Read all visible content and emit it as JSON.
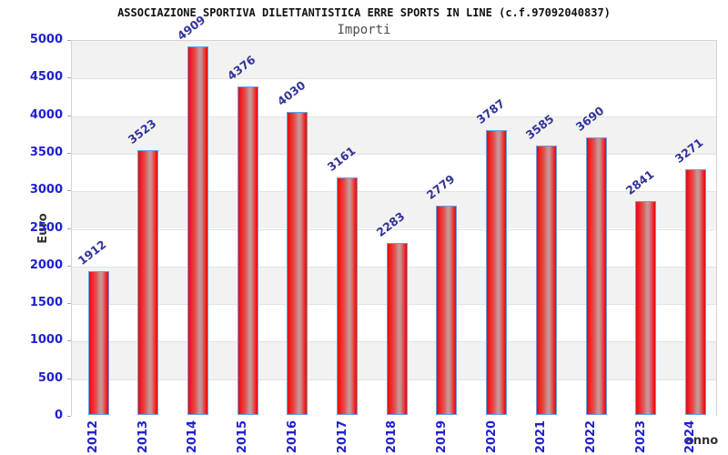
{
  "header": {
    "title": "ASSOCIAZIONE SPORTIVA DILETTANTISTICA ERRE SPORTS IN LINE (c.f.97092040837)",
    "subtitle": "Importi"
  },
  "chart_data": {
    "type": "bar",
    "title": "Importi",
    "categories": [
      "2012",
      "2013",
      "2014",
      "2015",
      "2016",
      "2017",
      "2018",
      "2019",
      "2020",
      "2021",
      "2022",
      "2023",
      "2024"
    ],
    "values": [
      1912,
      3523,
      4909,
      4376,
      4030,
      3161,
      2283,
      2779,
      3787,
      3585,
      3690,
      2841,
      3271
    ],
    "xlabel": "anno",
    "ylabel": "Euro",
    "ylim": [
      0,
      5000
    ],
    "ytick_step": 500,
    "grid": "horizontal gridlines every 500 with alternating background bands",
    "legend": "none",
    "value_labels": "above each bar, rotated diagonally",
    "colors": {
      "bar_edge": "#dc1010",
      "bar_main": "#f32020",
      "bar_mid": "#e05454",
      "bar_highlight": "#c89393",
      "bar_border": "#63a0e8",
      "tick_label": "#1f1fd0",
      "value_label": "#333399",
      "axis_title": "#333333",
      "band_gray": "#f2f2f2",
      "band_white": "#ffffff"
    }
  }
}
